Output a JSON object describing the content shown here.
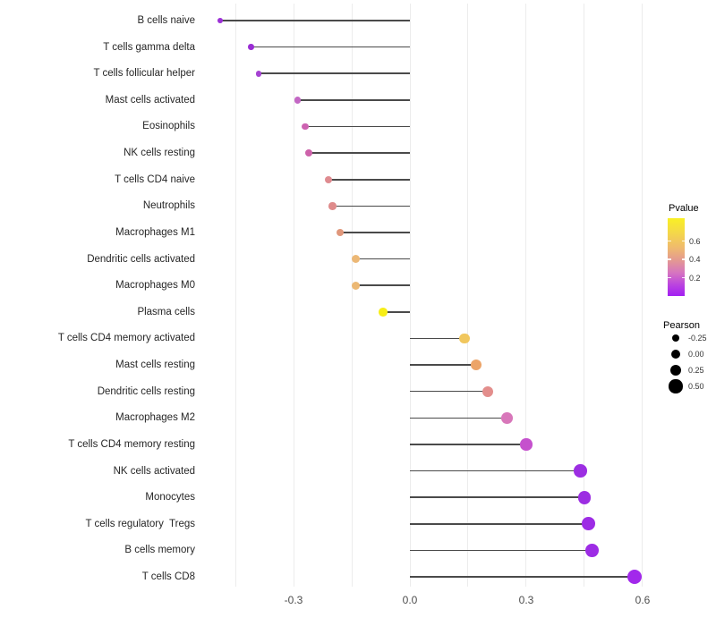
{
  "chart_data": {
    "type": "scatter",
    "variant": "lollipop",
    "title": "",
    "xlabel": "",
    "ylabel": "",
    "baseline": 0,
    "x_axis": {
      "tick_labels": [
        "-0.3",
        "0.0",
        "0.3",
        "0.6"
      ],
      "tick_values": [
        -0.3,
        0.0,
        0.3,
        0.6
      ],
      "gridline_values": [
        -0.45,
        -0.3,
        -0.15,
        0.0,
        0.15,
        0.3,
        0.45,
        0.6
      ],
      "range": [
        -0.52,
        0.62
      ],
      "grid": "vertical-only"
    },
    "points": [
      {
        "label": "B cells naive",
        "pearson": -0.49,
        "color": "#9c31d6"
      },
      {
        "label": "T cells gamma delta",
        "pearson": -0.41,
        "color": "#9a2ed4"
      },
      {
        "label": "T cells follicular helper",
        "pearson": -0.39,
        "color": "#a542d2"
      },
      {
        "label": "Mast cells activated",
        "pearson": -0.29,
        "color": "#c367c4"
      },
      {
        "label": "Eosinophils",
        "pearson": -0.27,
        "color": "#cd63b1"
      },
      {
        "label": "NK cells resting",
        "pearson": -0.26,
        "color": "#cd62aa"
      },
      {
        "label": "T cells CD4 naive",
        "pearson": -0.21,
        "color": "#df8b90"
      },
      {
        "label": "Neutrophils",
        "pearson": -0.2,
        "color": "#df8b8b"
      },
      {
        "label": "Macrophages M1",
        "pearson": -0.18,
        "color": "#e0977b"
      },
      {
        "label": "Dendritic cells activated",
        "pearson": -0.14,
        "color": "#ecb876"
      },
      {
        "label": "Macrophages M0",
        "pearson": -0.14,
        "color": "#ecb873"
      },
      {
        "label": "Plasma cells",
        "pearson": -0.07,
        "color": "#f7ee16"
      },
      {
        "label": "T cells CD4 memory activated",
        "pearson": 0.14,
        "color": "#f1c75e"
      },
      {
        "label": "Mast cells resting",
        "pearson": 0.17,
        "color": "#eca468"
      },
      {
        "label": "Dendritic cells resting",
        "pearson": 0.2,
        "color": "#e38e8c"
      },
      {
        "label": "Macrophages M2",
        "pearson": 0.25,
        "color": "#d877ba"
      },
      {
        "label": "T cells CD4 memory resting",
        "pearson": 0.3,
        "color": "#c551cd"
      },
      {
        "label": "NK cells activated",
        "pearson": 0.44,
        "color": "#9c2ee2"
      },
      {
        "label": "Monocytes",
        "pearson": 0.45,
        "color": "#9c2ee2"
      },
      {
        "label": "T cells regulatory  Tregs",
        "pearson": 0.46,
        "color": "#9d2ce5"
      },
      {
        "label": "B cells memory",
        "pearson": 0.47,
        "color": "#9d2ce5"
      },
      {
        "label": "T cells CD8",
        "pearson": 0.58,
        "color": "#a228eb"
      }
    ],
    "legend": {
      "position": "right",
      "pvalue": {
        "title": "Pvalue",
        "tick_labels": [
          "0.6",
          "0.4",
          "0.2"
        ],
        "tick_values": [
          0.6,
          0.4,
          0.2
        ],
        "domain": [
          0.85,
          0.0
        ],
        "gradient": [
          {
            "color": "#f9f024",
            "pos": 0
          },
          {
            "color": "#f5dd42",
            "pos": 15
          },
          {
            "color": "#efba6e",
            "pos": 38
          },
          {
            "color": "#e39794",
            "pos": 55
          },
          {
            "color": "#d675c0",
            "pos": 70
          },
          {
            "color": "#ba43e0",
            "pos": 86
          },
          {
            "color": "#a21ff2",
            "pos": 100
          }
        ]
      },
      "pearson": {
        "title": "Pearson",
        "dot_color": "#000000",
        "items": [
          {
            "label": "-0.25",
            "value": -0.25
          },
          {
            "label": "0.00",
            "value": 0.0
          },
          {
            "label": "0.25",
            "value": 0.25
          },
          {
            "label": "0.50",
            "value": 0.5
          }
        ]
      }
    },
    "style_colors": {
      "stem": "#4a4a4a",
      "gridline": "#ececec",
      "axis_text": "#4d4d4d",
      "label_text": "#262626",
      "legend_text": "#333333"
    }
  }
}
